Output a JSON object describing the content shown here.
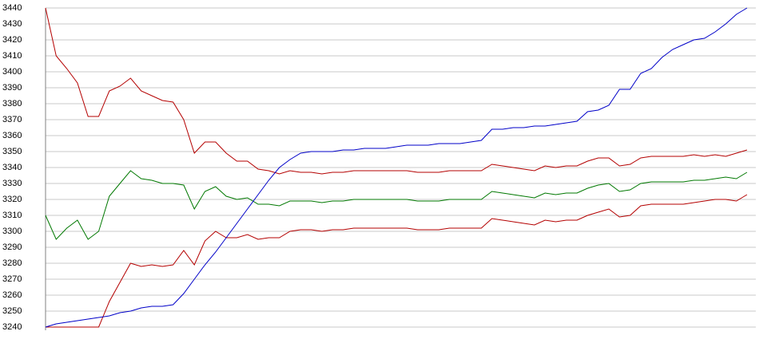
{
  "chart_data": {
    "type": "line",
    "categories": [
      null,
      null,
      null,
      null,
      null,
      null,
      null,
      null,
      null,
      null,
      null,
      null,
      null,
      null,
      null,
      null,
      null,
      null,
      null,
      null,
      null,
      null,
      null,
      null,
      null,
      null,
      null,
      null,
      null,
      null,
      null,
      null,
      null,
      null,
      null,
      null,
      null,
      null,
      null,
      null,
      null,
      null,
      null,
      null,
      null,
      null,
      null,
      null,
      null,
      null,
      null,
      null,
      null,
      null,
      null,
      null,
      null,
      null,
      null,
      null,
      null,
      null,
      null,
      null,
      null,
      null,
      null
    ],
    "series": [
      {
        "color": "#b40000",
        "values": [
          3440,
          3410,
          3402,
          3393,
          3372,
          3372,
          3388,
          3391,
          3396,
          3388,
          3385,
          3382,
          3381,
          3370,
          3349,
          3356,
          3356,
          3349,
          3344,
          3344,
          3339,
          3338,
          3336,
          3338,
          3337,
          3337,
          3336,
          3337,
          3337,
          3338,
          3338,
          3338,
          3338,
          3338,
          3338,
          3337,
          3337,
          3337,
          3338,
          3338,
          3338,
          3338,
          3342,
          3341,
          3340,
          3339,
          3338,
          3341,
          3340,
          3341,
          3341,
          3344,
          3346,
          3346,
          3341,
          3342,
          3346,
          3347,
          3347,
          3347,
          3347,
          3348,
          3347,
          3348,
          3347,
          3349,
          3351
        ]
      },
      {
        "color": "#007800",
        "values": [
          3310,
          3295,
          3302,
          3307,
          3295,
          3300,
          3322,
          3330,
          3338,
          3333,
          3332,
          3330,
          3330,
          3329,
          3314,
          3325,
          3328,
          3322,
          3320,
          3321,
          3317,
          3317,
          3316,
          3319,
          3319,
          3319,
          3318,
          3319,
          3319,
          3320,
          3320,
          3320,
          3320,
          3320,
          3320,
          3319,
          3319,
          3319,
          3320,
          3320,
          3320,
          3320,
          3325,
          3324,
          3323,
          3322,
          3321,
          3324,
          3323,
          3324,
          3324,
          3327,
          3329,
          3330,
          3325,
          3326,
          3330,
          3331,
          3331,
          3331,
          3331,
          3332,
          3332,
          3333,
          3334,
          3333,
          3337
        ]
      },
      {
        "color": "#b40000",
        "values": [
          3240,
          3240,
          3240,
          3240,
          3240,
          3240,
          3256,
          3268,
          3280,
          3278,
          3279,
          3278,
          3279,
          3288,
          3279,
          3294,
          3300,
          3296,
          3296,
          3298,
          3295,
          3296,
          3296,
          3300,
          3301,
          3301,
          3300,
          3301,
          3301,
          3302,
          3302,
          3302,
          3302,
          3302,
          3302,
          3301,
          3301,
          3301,
          3302,
          3302,
          3302,
          3302,
          3308,
          3307,
          3306,
          3305,
          3304,
          3307,
          3306,
          3307,
          3307,
          3310,
          3312,
          3314,
          3309,
          3310,
          3316,
          3317,
          3317,
          3317,
          3317,
          3318,
          3319,
          3320,
          3320,
          3319,
          3323
        ]
      },
      {
        "color": "#0000c8",
        "values": [
          3240,
          3242,
          3243,
          3244,
          3245,
          3246,
          3247,
          3249,
          3250,
          3252,
          3253,
          3253,
          3254,
          3261,
          3270,
          3279,
          3287,
          3296,
          3305,
          3314,
          3323,
          3332,
          3340,
          3345,
          3349,
          3350,
          3350,
          3350,
          3351,
          3351,
          3352,
          3352,
          3352,
          3353,
          3354,
          3354,
          3354,
          3355,
          3355,
          3355,
          3356,
          3357,
          3364,
          3364,
          3365,
          3365,
          3366,
          3366,
          3367,
          3368,
          3369,
          3375,
          3376,
          3379,
          3389,
          3389,
          3399,
          3402,
          3409,
          3414,
          3417,
          3420,
          3421,
          3425,
          3430,
          3436,
          3440
        ]
      }
    ],
    "ylim": [
      3240,
      3440
    ],
    "yticks": [
      3240,
      3250,
      3260,
      3270,
      3280,
      3290,
      3300,
      3310,
      3320,
      3330,
      3340,
      3350,
      3360,
      3370,
      3380,
      3390,
      3400,
      3410,
      3420,
      3430,
      3440
    ],
    "grid": true
  }
}
